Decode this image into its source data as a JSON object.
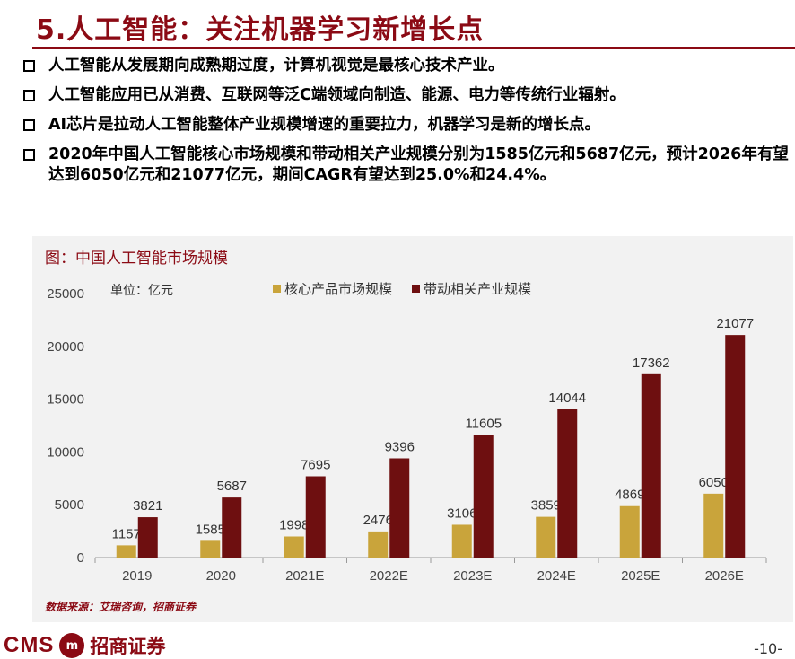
{
  "slide": {
    "title": "5.人工智能：关注机器学习新增长点",
    "bullets": [
      "人工智能从发展期向成熟期过度，计算机视觉是最核心技术产业。",
      "人工智能应用已从消费、互联网等泛C端领域向制造、能源、电力等传统行业辐射。",
      "AI芯片是拉动人工智能整体产业规模增速的重要拉力，机器学习是新的增长点。",
      "2020年中国人工智能核心市场规模和带动相关产业规模分别为1585亿元和5687亿元，预计2026年有望达到6050亿元和21077亿元，期间CAGR有望达到25.0%和24.4%。"
    ],
    "page_number": "-10-"
  },
  "chart_title": "图：中国人工智能市场规模",
  "source": "数据来源：艾瑞咨询，招商证券",
  "footer": {
    "logo_text": "CMS",
    "seal_text": "m",
    "brand": "招商证券"
  },
  "colors": {
    "accent": "#8b0a14",
    "series_core": "#c9a43b",
    "series_related": "#6e0f10"
  },
  "chart_data": {
    "type": "bar",
    "title": "",
    "unit_label": "单位：亿元",
    "categories": [
      "2019",
      "2020",
      "2021E",
      "2022E",
      "2023E",
      "2024E",
      "2025E",
      "2026E"
    ],
    "series": [
      {
        "name": "核心产品市场规模",
        "values": [
          1157,
          1585,
          1998,
          2476,
          3106,
          3859,
          4869,
          6050
        ]
      },
      {
        "name": "带动相关产业规模",
        "values": [
          3821,
          5687,
          7695,
          9396,
          11605,
          14044,
          17362,
          21077
        ]
      }
    ],
    "ylim": [
      0,
      25000
    ],
    "yticks": [
      0,
      5000,
      10000,
      15000,
      20000,
      25000
    ],
    "legend": "top",
    "grid": false
  }
}
